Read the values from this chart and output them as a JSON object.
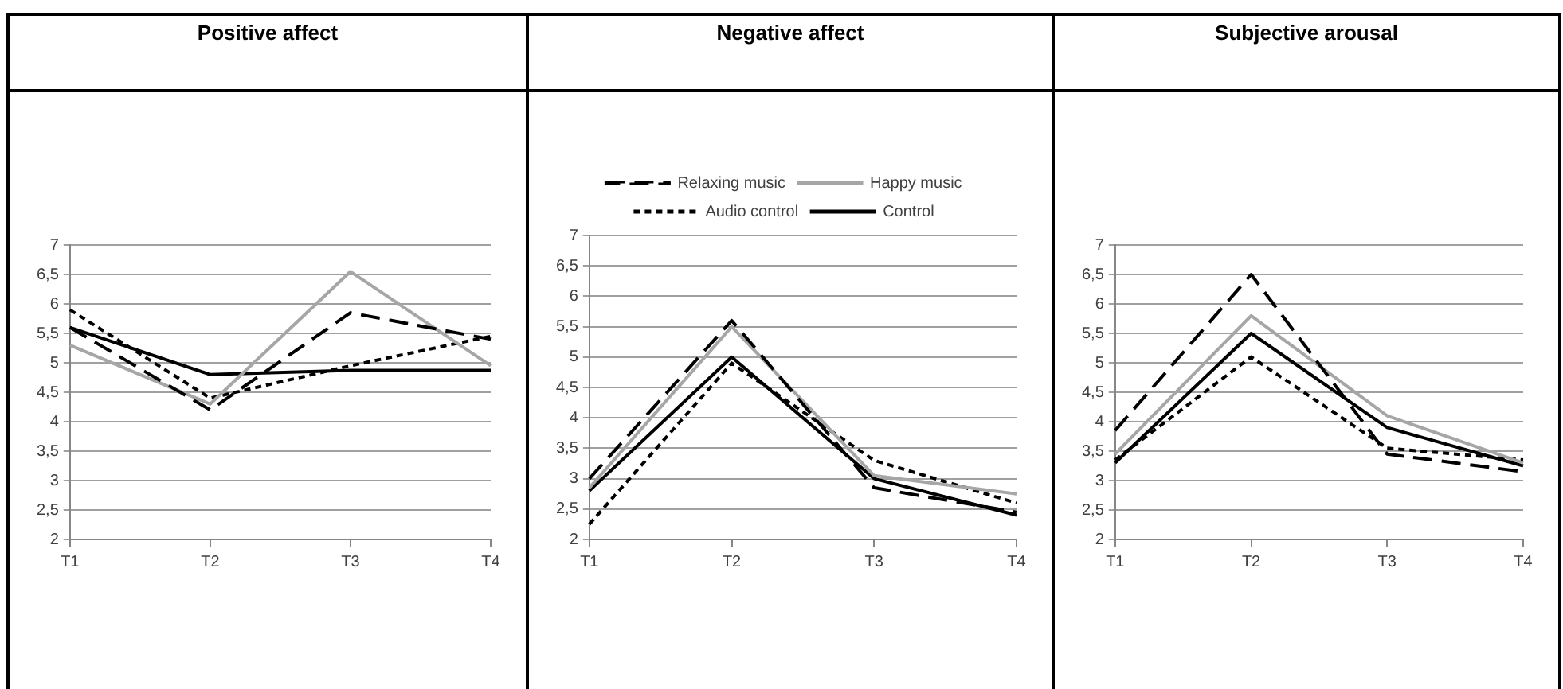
{
  "chart_data": [
    {
      "type": "line",
      "title": "Positive affect",
      "categories": [
        "T1",
        "T2",
        "T3",
        "T4"
      ],
      "ylim": [
        2,
        7
      ],
      "yticks": [
        2,
        {
          "value": 2.5,
          "label": "2,5"
        },
        3,
        {
          "value": 3.5,
          "label": "3,5"
        },
        4,
        {
          "value": 4.5,
          "label": "4,5"
        },
        5,
        {
          "value": 5.5,
          "label": "5,5"
        },
        6,
        {
          "value": 6.5,
          "label": "6,5"
        },
        7
      ],
      "grid": "y",
      "legend": false,
      "marker": "none",
      "series": [
        {
          "color": "#000000",
          "line_style": "dashed",
          "values": [
            5.6,
            4.2,
            5.85,
            5.4
          ]
        },
        {
          "color": "#a6a6a6",
          "line_style": "solid",
          "values": [
            5.3,
            4.3,
            6.55,
            4.95
          ]
        },
        {
          "color": "#000000",
          "line_style": "dotted",
          "values": [
            5.9,
            4.4,
            4.95,
            5.45
          ]
        },
        {
          "color": "#000000",
          "line_style": "solid",
          "values": [
            5.6,
            4.8,
            4.87,
            4.87
          ]
        }
      ]
    },
    {
      "type": "line",
      "title": "Negative affect",
      "categories": [
        "T1",
        "T2",
        "T3",
        "T4"
      ],
      "ylim": [
        2,
        7
      ],
      "yticks": [
        2,
        {
          "value": 2.5,
          "label": "2,5"
        },
        3,
        {
          "value": 3.5,
          "label": "3,5"
        },
        4,
        {
          "value": 4.5,
          "label": "4,5"
        },
        5,
        {
          "value": 5.5,
          "label": "5,5"
        },
        6,
        {
          "value": 6.5,
          "label": "6,5"
        },
        7
      ],
      "grid": "y",
      "legend": "top",
      "marker": "none",
      "series": [
        {
          "name": "Relaxing music",
          "color": "#000000",
          "line_style": "dashed",
          "values": [
            3.0,
            5.6,
            2.85,
            2.45
          ]
        },
        {
          "name": "Happy music",
          "color": "#a6a6a6",
          "line_style": "solid",
          "values": [
            2.85,
            5.5,
            3.05,
            2.75
          ]
        },
        {
          "name": "Audio control",
          "color": "#000000",
          "line_style": "dotted",
          "values": [
            2.25,
            4.9,
            3.3,
            2.6
          ]
        },
        {
          "name": "Control",
          "color": "#000000",
          "line_style": "solid",
          "values": [
            2.8,
            5.0,
            3.0,
            2.4
          ]
        }
      ]
    },
    {
      "type": "line",
      "title": "Subjective arousal",
      "categories": [
        "T1",
        "T2",
        "T3",
        "T4"
      ],
      "ylim": [
        2,
        7
      ],
      "yticks": [
        2,
        {
          "value": 2.5,
          "label": "2,5"
        },
        3,
        {
          "value": 3.5,
          "label": "3,5"
        },
        4,
        {
          "value": 4.5,
          "label": "4,5"
        },
        5,
        {
          "value": 5.5,
          "label": "5,5"
        },
        6,
        {
          "value": 6.5,
          "label": "6,5"
        },
        7
      ],
      "grid": "y",
      "legend": false,
      "marker": "none",
      "series": [
        {
          "color": "#000000",
          "line_style": "dashed",
          "values": [
            3.85,
            6.5,
            3.45,
            3.15
          ]
        },
        {
          "color": "#a6a6a6",
          "line_style": "solid",
          "values": [
            3.45,
            5.8,
            4.1,
            3.3
          ]
        },
        {
          "color": "#000000",
          "line_style": "dotted",
          "values": [
            3.35,
            5.1,
            3.55,
            3.35
          ]
        },
        {
          "color": "#000000",
          "line_style": "solid",
          "values": [
            3.3,
            5.5,
            3.9,
            3.25
          ]
        }
      ]
    }
  ]
}
